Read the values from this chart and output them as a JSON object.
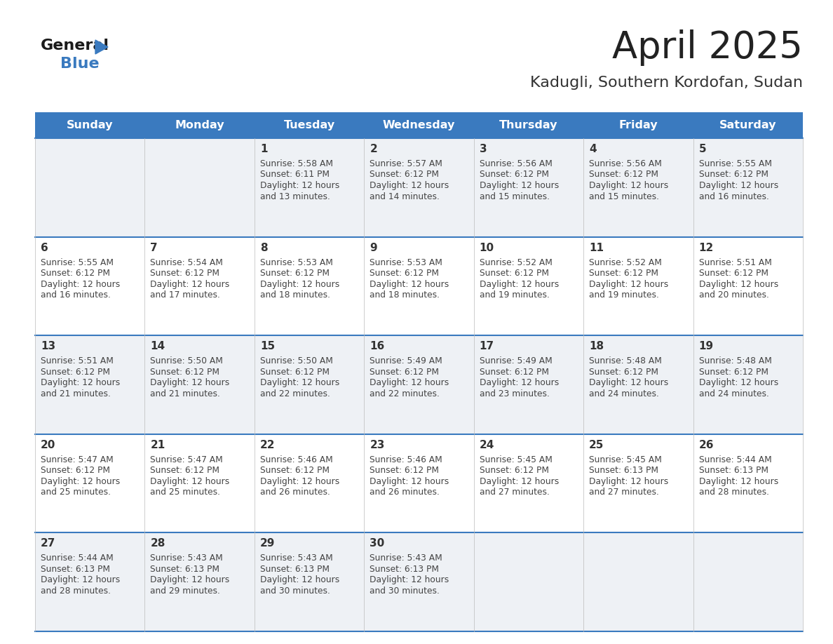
{
  "title": "April 2025",
  "subtitle": "Kadugli, Southern Kordofan, Sudan",
  "header_bg_color": "#3a7abf",
  "header_text_color": "#ffffff",
  "bg_color": "#ffffff",
  "cell_bg_light": "#eef1f5",
  "cell_bg_white": "#ffffff",
  "day_names": [
    "Sunday",
    "Monday",
    "Tuesday",
    "Wednesday",
    "Thursday",
    "Friday",
    "Saturday"
  ],
  "title_color": "#222222",
  "subtitle_color": "#333333",
  "day_num_color": "#333333",
  "cell_text_color": "#444444",
  "grid_line_color": "#3a7abf",
  "logo_color1": "#1a1a1a",
  "logo_color2": "#3a7abf",
  "logo_tri_color": "#3a7abf",
  "days": [
    {
      "date": 1,
      "row": 0,
      "col": 2,
      "sunrise": "5:58 AM",
      "sunset": "6:11 PM",
      "daylight_hours": 12,
      "daylight_minutes": 13
    },
    {
      "date": 2,
      "row": 0,
      "col": 3,
      "sunrise": "5:57 AM",
      "sunset": "6:12 PM",
      "daylight_hours": 12,
      "daylight_minutes": 14
    },
    {
      "date": 3,
      "row": 0,
      "col": 4,
      "sunrise": "5:56 AM",
      "sunset": "6:12 PM",
      "daylight_hours": 12,
      "daylight_minutes": 15
    },
    {
      "date": 4,
      "row": 0,
      "col": 5,
      "sunrise": "5:56 AM",
      "sunset": "6:12 PM",
      "daylight_hours": 12,
      "daylight_minutes": 15
    },
    {
      "date": 5,
      "row": 0,
      "col": 6,
      "sunrise": "5:55 AM",
      "sunset": "6:12 PM",
      "daylight_hours": 12,
      "daylight_minutes": 16
    },
    {
      "date": 6,
      "row": 1,
      "col": 0,
      "sunrise": "5:55 AM",
      "sunset": "6:12 PM",
      "daylight_hours": 12,
      "daylight_minutes": 16
    },
    {
      "date": 7,
      "row": 1,
      "col": 1,
      "sunrise": "5:54 AM",
      "sunset": "6:12 PM",
      "daylight_hours": 12,
      "daylight_minutes": 17
    },
    {
      "date": 8,
      "row": 1,
      "col": 2,
      "sunrise": "5:53 AM",
      "sunset": "6:12 PM",
      "daylight_hours": 12,
      "daylight_minutes": 18
    },
    {
      "date": 9,
      "row": 1,
      "col": 3,
      "sunrise": "5:53 AM",
      "sunset": "6:12 PM",
      "daylight_hours": 12,
      "daylight_minutes": 18
    },
    {
      "date": 10,
      "row": 1,
      "col": 4,
      "sunrise": "5:52 AM",
      "sunset": "6:12 PM",
      "daylight_hours": 12,
      "daylight_minutes": 19
    },
    {
      "date": 11,
      "row": 1,
      "col": 5,
      "sunrise": "5:52 AM",
      "sunset": "6:12 PM",
      "daylight_hours": 12,
      "daylight_minutes": 19
    },
    {
      "date": 12,
      "row": 1,
      "col": 6,
      "sunrise": "5:51 AM",
      "sunset": "6:12 PM",
      "daylight_hours": 12,
      "daylight_minutes": 20
    },
    {
      "date": 13,
      "row": 2,
      "col": 0,
      "sunrise": "5:51 AM",
      "sunset": "6:12 PM",
      "daylight_hours": 12,
      "daylight_minutes": 21
    },
    {
      "date": 14,
      "row": 2,
      "col": 1,
      "sunrise": "5:50 AM",
      "sunset": "6:12 PM",
      "daylight_hours": 12,
      "daylight_minutes": 21
    },
    {
      "date": 15,
      "row": 2,
      "col": 2,
      "sunrise": "5:50 AM",
      "sunset": "6:12 PM",
      "daylight_hours": 12,
      "daylight_minutes": 22
    },
    {
      "date": 16,
      "row": 2,
      "col": 3,
      "sunrise": "5:49 AM",
      "sunset": "6:12 PM",
      "daylight_hours": 12,
      "daylight_minutes": 22
    },
    {
      "date": 17,
      "row": 2,
      "col": 4,
      "sunrise": "5:49 AM",
      "sunset": "6:12 PM",
      "daylight_hours": 12,
      "daylight_minutes": 23
    },
    {
      "date": 18,
      "row": 2,
      "col": 5,
      "sunrise": "5:48 AM",
      "sunset": "6:12 PM",
      "daylight_hours": 12,
      "daylight_minutes": 24
    },
    {
      "date": 19,
      "row": 2,
      "col": 6,
      "sunrise": "5:48 AM",
      "sunset": "6:12 PM",
      "daylight_hours": 12,
      "daylight_minutes": 24
    },
    {
      "date": 20,
      "row": 3,
      "col": 0,
      "sunrise": "5:47 AM",
      "sunset": "6:12 PM",
      "daylight_hours": 12,
      "daylight_minutes": 25
    },
    {
      "date": 21,
      "row": 3,
      "col": 1,
      "sunrise": "5:47 AM",
      "sunset": "6:12 PM",
      "daylight_hours": 12,
      "daylight_minutes": 25
    },
    {
      "date": 22,
      "row": 3,
      "col": 2,
      "sunrise": "5:46 AM",
      "sunset": "6:12 PM",
      "daylight_hours": 12,
      "daylight_minutes": 26
    },
    {
      "date": 23,
      "row": 3,
      "col": 3,
      "sunrise": "5:46 AM",
      "sunset": "6:12 PM",
      "daylight_hours": 12,
      "daylight_minutes": 26
    },
    {
      "date": 24,
      "row": 3,
      "col": 4,
      "sunrise": "5:45 AM",
      "sunset": "6:12 PM",
      "daylight_hours": 12,
      "daylight_minutes": 27
    },
    {
      "date": 25,
      "row": 3,
      "col": 5,
      "sunrise": "5:45 AM",
      "sunset": "6:13 PM",
      "daylight_hours": 12,
      "daylight_minutes": 27
    },
    {
      "date": 26,
      "row": 3,
      "col": 6,
      "sunrise": "5:44 AM",
      "sunset": "6:13 PM",
      "daylight_hours": 12,
      "daylight_minutes": 28
    },
    {
      "date": 27,
      "row": 4,
      "col": 0,
      "sunrise": "5:44 AM",
      "sunset": "6:13 PM",
      "daylight_hours": 12,
      "daylight_minutes": 28
    },
    {
      "date": 28,
      "row": 4,
      "col": 1,
      "sunrise": "5:43 AM",
      "sunset": "6:13 PM",
      "daylight_hours": 12,
      "daylight_minutes": 29
    },
    {
      "date": 29,
      "row": 4,
      "col": 2,
      "sunrise": "5:43 AM",
      "sunset": "6:13 PM",
      "daylight_hours": 12,
      "daylight_minutes": 30
    },
    {
      "date": 30,
      "row": 4,
      "col": 3,
      "sunrise": "5:43 AM",
      "sunset": "6:13 PM",
      "daylight_hours": 12,
      "daylight_minutes": 30
    }
  ]
}
